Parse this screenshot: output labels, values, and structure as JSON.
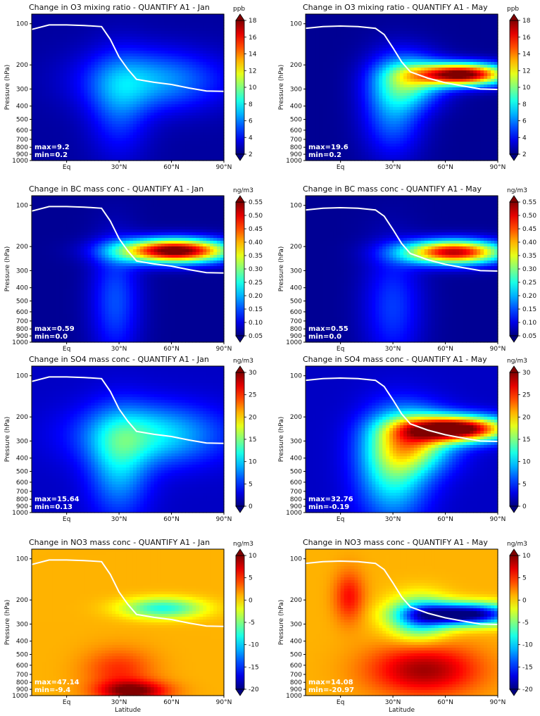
{
  "figure": {
    "ylabel": "Pressure (hPa)",
    "xlabel": "Latitude",
    "pressure_ticks": [
      "100",
      "200",
      "300",
      "400",
      "500",
      "600",
      "700",
      "800",
      "900",
      "1000"
    ],
    "lat_ticks": [
      "Eq",
      "30°N",
      "60°N",
      "90°N"
    ]
  },
  "chart_data": [
    {
      "type": "heatmap",
      "title": "Change in O3 mixing ratio - QUANTIFY A1 - Jan",
      "units": "ppb",
      "colorbar": [
        "18",
        "16",
        "14",
        "12",
        "10",
        "8",
        "6",
        "4",
        "2"
      ],
      "vmin": 2,
      "vmax": 18,
      "max_label": "max=9.2",
      "min_label": "min=0.2",
      "field": {
        "background": 2.5,
        "blobs": [
          {
            "lat": 50,
            "p": 260,
            "value": 6.5,
            "slat": 28,
            "slp": 0.35
          },
          {
            "lat": 30,
            "p": 400,
            "value": 5.0,
            "slat": 12,
            "slp": 0.6
          }
        ]
      },
      "tropopause_lat": [
        -20,
        -10,
        0,
        10,
        20,
        25,
        30,
        35,
        40,
        50,
        60,
        70,
        80,
        90
      ],
      "tropopause_p": [
        110,
        102,
        102,
        103,
        105,
        130,
        175,
        215,
        255,
        268,
        278,
        295,
        310,
        312
      ]
    },
    {
      "type": "heatmap",
      "title": "Change in O3 mixing ratio - QUANTIFY A1 - May",
      "units": "ppb",
      "colorbar": [
        "18",
        "16",
        "14",
        "12",
        "10",
        "8",
        "6",
        "4",
        "2"
      ],
      "vmin": 2,
      "vmax": 18,
      "max_label": "max=19.6",
      "min_label": "min=0.2",
      "field": {
        "background": 2.3,
        "blobs": [
          {
            "lat": 70,
            "p": 235,
            "value": 18.5,
            "slat": 18,
            "slp": 0.13
          },
          {
            "lat": 40,
            "p": 260,
            "value": 8.0,
            "slat": 14,
            "slp": 0.3
          },
          {
            "lat": 30,
            "p": 420,
            "value": 6.0,
            "slat": 12,
            "slp": 0.55
          }
        ]
      },
      "tropopause_lat": [
        -20,
        -10,
        0,
        10,
        20,
        25,
        30,
        35,
        40,
        50,
        60,
        70,
        80,
        90
      ],
      "tropopause_p": [
        108,
        105,
        104,
        105,
        108,
        120,
        150,
        190,
        225,
        250,
        270,
        285,
        300,
        302
      ]
    },
    {
      "type": "heatmap",
      "title": "Change in BC mass conc - QUANTIFY A1 - Jan",
      "units": "ng/m3",
      "colorbar": [
        "0.55",
        "0.50",
        "0.45",
        "0.40",
        "0.35",
        "0.30",
        "0.25",
        "0.20",
        "0.15",
        "0.10",
        "0.05"
      ],
      "vmin": 0.05,
      "vmax": 0.55,
      "max_label": "max=0.59",
      "min_label": "min=0.0",
      "field": {
        "background": 0.06,
        "blobs": [
          {
            "lat": 62,
            "p": 215,
            "value": 0.58,
            "slat": 22,
            "slp": 0.14
          },
          {
            "lat": 28,
            "p": 500,
            "value": 0.15,
            "slat": 10,
            "slp": 0.7
          }
        ]
      },
      "tropopause_lat": [
        -20,
        -10,
        0,
        10,
        20,
        25,
        30,
        35,
        40,
        50,
        60,
        70,
        80,
        90
      ],
      "tropopause_p": [
        110,
        102,
        102,
        103,
        105,
        130,
        175,
        215,
        255,
        268,
        278,
        295,
        310,
        312
      ]
    },
    {
      "type": "heatmap",
      "title": "Change in BC mass conc - QUANTIFY A1 - May",
      "units": "ng/m3",
      "colorbar": [
        "0.55",
        "0.50",
        "0.45",
        "0.40",
        "0.35",
        "0.30",
        "0.25",
        "0.20",
        "0.15",
        "0.10",
        "0.05"
      ],
      "vmin": 0.05,
      "vmax": 0.55,
      "max_label": "max=0.55",
      "min_label": "min=0.0",
      "field": {
        "background": 0.06,
        "blobs": [
          {
            "lat": 65,
            "p": 220,
            "value": 0.52,
            "slat": 20,
            "slp": 0.14
          },
          {
            "lat": 30,
            "p": 550,
            "value": 0.14,
            "slat": 12,
            "slp": 0.7
          }
        ]
      },
      "tropopause_lat": [
        -20,
        -10,
        0,
        10,
        20,
        25,
        30,
        35,
        40,
        50,
        60,
        70,
        80,
        90
      ],
      "tropopause_p": [
        108,
        105,
        104,
        105,
        108,
        120,
        150,
        190,
        225,
        250,
        270,
        285,
        300,
        302
      ]
    },
    {
      "type": "heatmap",
      "title": "Change in SO4 mass conc - QUANTIFY A1 - Jan",
      "units": "ng/m3",
      "colorbar": [
        "30",
        "25",
        "20",
        "15",
        "10",
        "5",
        "0"
      ],
      "vmin": 0,
      "vmax": 30,
      "max_label": "max=15.64",
      "min_label": "min=0.13",
      "field": {
        "background": 2.0,
        "blobs": [
          {
            "lat": 48,
            "p": 270,
            "value": 11.0,
            "slat": 28,
            "slp": 0.35
          },
          {
            "lat": 30,
            "p": 450,
            "value": 9.0,
            "slat": 12,
            "slp": 0.6
          }
        ]
      },
      "tropopause_lat": [
        -20,
        -10,
        0,
        10,
        20,
        25,
        30,
        35,
        40,
        50,
        60,
        70,
        80,
        90
      ],
      "tropopause_p": [
        110,
        102,
        102,
        103,
        105,
        130,
        175,
        215,
        255,
        268,
        278,
        295,
        310,
        312
      ]
    },
    {
      "type": "heatmap",
      "title": "Change in SO4 mass conc - QUANTIFY A1 - May",
      "units": "ng/m3",
      "colorbar": [
        "30",
        "25",
        "20",
        "15",
        "10",
        "5",
        "0"
      ],
      "vmin": 0,
      "vmax": 30,
      "max_label": "max=32.76",
      "min_label": "min=-0.19",
      "field": {
        "background": 2.0,
        "blobs": [
          {
            "lat": 68,
            "p": 245,
            "value": 31.0,
            "slat": 20,
            "slp": 0.15
          },
          {
            "lat": 42,
            "p": 300,
            "value": 16.0,
            "slat": 16,
            "slp": 0.35
          },
          {
            "lat": 30,
            "p": 480,
            "value": 12.0,
            "slat": 14,
            "slp": 0.6
          }
        ]
      },
      "tropopause_lat": [
        -20,
        -10,
        0,
        10,
        20,
        25,
        30,
        35,
        40,
        50,
        60,
        70,
        80,
        90
      ],
      "tropopause_p": [
        108,
        105,
        104,
        105,
        108,
        120,
        150,
        190,
        225,
        250,
        270,
        285,
        300,
        302
      ]
    },
    {
      "type": "heatmap",
      "title": "Change in NO3 mass conc - QUANTIFY A1 - Jan",
      "units": "ng/m3",
      "colorbar": [
        "10",
        "5",
        "0",
        "-5",
        "-10",
        "-15",
        "-20"
      ],
      "vmin": -20,
      "vmax": 10,
      "max_label": "max=47.14",
      "min_label": "min=-9.4",
      "field": {
        "background": 1.0,
        "blobs": [
          {
            "lat": 38,
            "p": 930,
            "value": 10.0,
            "slat": 14,
            "slp": 0.12
          },
          {
            "lat": 30,
            "p": 650,
            "value": 5.0,
            "slat": 14,
            "slp": 0.25
          },
          {
            "lat": 55,
            "p": 230,
            "value": -8.0,
            "slat": 16,
            "slp": 0.12
          }
        ]
      },
      "tropopause_lat": [
        -20,
        -10,
        0,
        10,
        20,
        25,
        30,
        35,
        40,
        50,
        60,
        70,
        80,
        90
      ],
      "tropopause_p": [
        110,
        102,
        102,
        103,
        105,
        130,
        175,
        215,
        255,
        268,
        278,
        295,
        310,
        312
      ]
    },
    {
      "type": "heatmap",
      "title": "Change in NO3 mass conc - QUANTIFY A1 - May",
      "units": "ng/m3",
      "colorbar": [
        "10",
        "5",
        "0",
        "-5",
        "-10",
        "-15",
        "-20"
      ],
      "vmin": -20,
      "vmax": 10,
      "max_label": "max=14.08",
      "min_label": "min=-20.97",
      "field": {
        "background": 1.0,
        "blobs": [
          {
            "lat": 72,
            "p": 255,
            "value": -21.0,
            "slat": 20,
            "slp": 0.13
          },
          {
            "lat": 45,
            "p": 270,
            "value": -10.0,
            "slat": 12,
            "slp": 0.25
          },
          {
            "lat": 48,
            "p": 650,
            "value": 9.0,
            "slat": 22,
            "slp": 0.3
          },
          {
            "lat": 5,
            "p": 190,
            "value": 6.0,
            "slat": 6,
            "slp": 0.3
          }
        ]
      },
      "tropopause_lat": [
        -20,
        -10,
        0,
        10,
        20,
        25,
        30,
        35,
        40,
        50,
        60,
        70,
        80,
        90
      ],
      "tropopause_p": [
        108,
        105,
        104,
        105,
        108,
        120,
        150,
        190,
        225,
        250,
        270,
        285,
        300,
        302
      ]
    }
  ]
}
